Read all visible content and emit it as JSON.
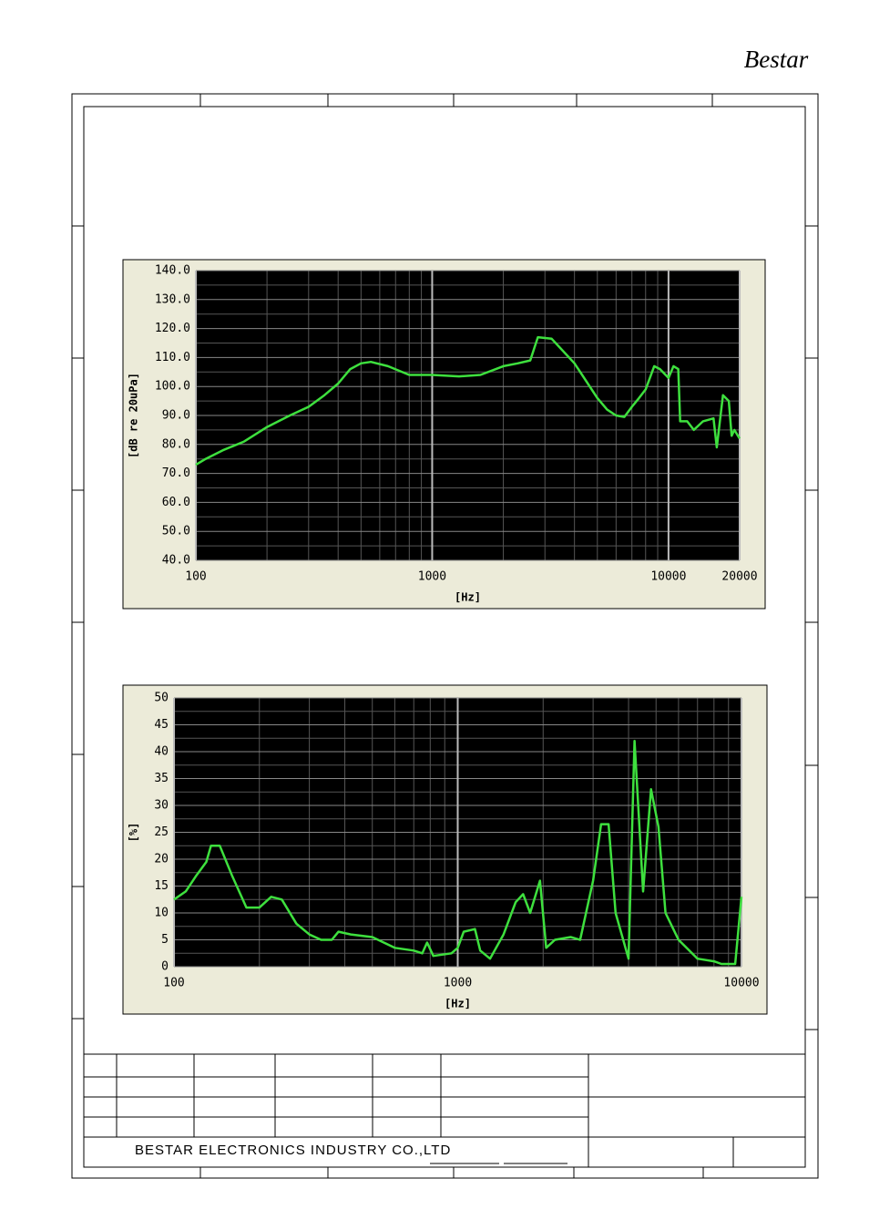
{
  "header": {
    "logo": "Bestar"
  },
  "chart_data": [
    {
      "type": "line",
      "ylabel": "[dB re 20uPa]",
      "xlabel": "[Hz]",
      "xscale": "log",
      "grid": true,
      "xlim": [
        100,
        20000
      ],
      "xticks": [
        100,
        1000,
        10000,
        20000
      ],
      "ylim": [
        40,
        140
      ],
      "yticks": [
        {
          "value": 40,
          "label": "40.0"
        },
        {
          "value": 50,
          "label": "50.0"
        },
        {
          "value": 60,
          "label": "60.0"
        },
        {
          "value": 70,
          "label": "70.0"
        },
        {
          "value": 80,
          "label": "80.0"
        },
        {
          "value": 90,
          "label": "90.0"
        },
        {
          "value": 100,
          "label": "100.0"
        },
        {
          "value": 110,
          "label": "110.0"
        },
        {
          "value": 120,
          "label": "120.0"
        },
        {
          "value": 130,
          "label": "130.0"
        },
        {
          "value": 140,
          "label": "140.0"
        }
      ],
      "x": [
        100,
        110,
        130,
        160,
        200,
        250,
        300,
        350,
        400,
        450,
        500,
        550,
        650,
        800,
        1000,
        1300,
        1600,
        2000,
        2300,
        2600,
        2800,
        3200,
        4000,
        5000,
        5500,
        6000,
        6500,
        7000,
        7500,
        8000,
        8700,
        9200,
        10000,
        10500,
        11000,
        11200,
        12000,
        12800,
        14000,
        15500,
        16000,
        17000,
        18000,
        18500,
        19000,
        20000
      ],
      "series": [
        {
          "color": "#3ee03e",
          "values": [
            73,
            75,
            78,
            81,
            86,
            90,
            93,
            97,
            101,
            106,
            108,
            108.5,
            107,
            104,
            104,
            103.5,
            104,
            107,
            108,
            109,
            117,
            116.5,
            108,
            96,
            92,
            90,
            89.5,
            93,
            96,
            99,
            107,
            106,
            103,
            107,
            106,
            88,
            88,
            85,
            88,
            89,
            79,
            97,
            95,
            83,
            85,
            82
          ]
        }
      ]
    },
    {
      "type": "line",
      "ylabel": "[%]",
      "xlabel": "[Hz]",
      "xscale": "log",
      "grid": true,
      "xlim": [
        100,
        10000
      ],
      "xticks": [
        100,
        1000,
        10000
      ],
      "ylim": [
        0,
        50
      ],
      "yticks": [
        0,
        5,
        10,
        15,
        20,
        25,
        30,
        35,
        40,
        45,
        50
      ],
      "x": [
        100,
        110,
        120,
        130,
        135,
        145,
        160,
        180,
        200,
        220,
        240,
        270,
        300,
        330,
        360,
        380,
        420,
        500,
        600,
        700,
        750,
        780,
        820,
        950,
        1000,
        1050,
        1150,
        1200,
        1300,
        1450,
        1600,
        1700,
        1800,
        1950,
        2050,
        2200,
        2500,
        2700,
        3000,
        3200,
        3400,
        3600,
        4000,
        4200,
        4500,
        4800,
        5100,
        5400,
        6000,
        7000,
        8000,
        8500,
        9500,
        10000
      ],
      "series": [
        {
          "color": "#3ee03e",
          "values": [
            12.5,
            14,
            17,
            19.5,
            22.5,
            22.5,
            17,
            11,
            11,
            13,
            12.5,
            8,
            6,
            5,
            5,
            6.5,
            6,
            5.5,
            3.5,
            3,
            2.5,
            4.5,
            2,
            2.5,
            3.5,
            6.5,
            7,
            3,
            1.5,
            6,
            12,
            13.5,
            10,
            16,
            3.5,
            5,
            5.5,
            5,
            16,
            26.5,
            26.5,
            10,
            1.5,
            42,
            14,
            33,
            26,
            10,
            5,
            1.5,
            1,
            0.5,
            0.5,
            13
          ]
        }
      ]
    }
  ],
  "footer": {
    "company": "BESTAR ELECTRONICS INDUSTRY CO.,LTD"
  }
}
